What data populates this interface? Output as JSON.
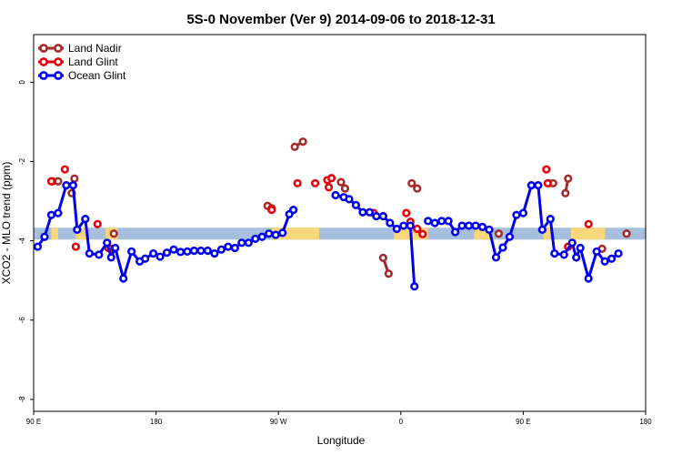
{
  "chart_data": {
    "type": "line",
    "title": "5S-0 November (Ver 9)   2014-09-06 to 2018-12-31",
    "xlabel": "Longitude",
    "ylabel": "XCO2 - MLO trend (ppm)",
    "xlim": [
      90,
      540
    ],
    "ylim": [
      -8.3,
      1.2
    ],
    "x_ticks": [
      {
        "value": 90,
        "label": "90 E"
      },
      {
        "value": 180,
        "label": "180"
      },
      {
        "value": 270,
        "label": "90 W"
      },
      {
        "value": 360,
        "label": "0"
      },
      {
        "value": 450,
        "label": "90 E"
      },
      {
        "value": 540,
        "label": "180"
      }
    ],
    "y_ticks": [
      {
        "value": 0,
        "label": "0"
      },
      {
        "value": -2,
        "label": "-2"
      },
      {
        "value": -4,
        "label": "-4"
      },
      {
        "value": -6,
        "label": "-6"
      },
      {
        "value": -8,
        "label": "-8"
      }
    ],
    "legend_position": "top-left",
    "grid": false,
    "land_band": {
      "y_top": -3.67,
      "y_bottom": -3.97,
      "ocean_color": "#a5bfdd",
      "land_color": "#f8d77a"
    },
    "series": [
      {
        "name": "Land Nadir",
        "color": "#a52a2a",
        "segments": [
          [
            [
              104,
              -2.5
            ],
            [
              108,
              -2.5
            ]
          ],
          [
            [
              118,
              -2.8
            ],
            [
              120,
              -2.43
            ]
          ],
          [
            [
              149,
              -3.82
            ]
          ],
          [
            [
              148,
              -4.2
            ]
          ],
          [
            [
              262,
              -3.12
            ],
            [
              265,
              -3.18
            ]
          ],
          [
            [
              282,
              -1.63
            ],
            [
              288,
              -1.5
            ]
          ],
          [
            [
              316,
              -2.52
            ],
            [
              319,
              -2.68
            ]
          ],
          [
            [
              347,
              -4.43
            ],
            [
              351,
              -4.83
            ]
          ],
          [
            [
              368,
              -2.55
            ],
            [
              372,
              -2.68
            ]
          ],
          [
            [
              432,
              -3.82
            ]
          ],
          [
            [
              469,
              -2.55
            ],
            [
              472,
              -2.55
            ]
          ],
          [
            [
              481,
              -2.8
            ],
            [
              483,
              -2.43
            ]
          ],
          [
            [
              508,
              -4.2
            ]
          ],
          [
            [
              526,
              -3.82
            ]
          ]
        ]
      },
      {
        "name": "Land Glint",
        "color": "#e8000b",
        "points": [
          [
            103,
            -2.5
          ],
          [
            113,
            -2.2
          ],
          [
            121,
            -4.15
          ],
          [
            137,
            -3.58
          ],
          [
            145,
            -4.18
          ],
          [
            265,
            -3.22
          ],
          [
            284,
            -2.55
          ],
          [
            297,
            -2.55
          ],
          [
            306,
            -2.47
          ],
          [
            307,
            -2.65
          ],
          [
            309,
            -2.42
          ],
          [
            340,
            -3.3
          ],
          [
            364,
            -3.3
          ],
          [
            367,
            -3.52
          ],
          [
            372,
            -3.7
          ],
          [
            376,
            -3.83
          ],
          [
            468,
            -2.55
          ],
          [
            467,
            -2.2
          ],
          [
            483,
            -4.15
          ],
          [
            498,
            -3.58
          ]
        ]
      },
      {
        "name": "Ocean Glint",
        "color": "#0000ee",
        "segments": [
          [
            [
              93,
              -4.15
            ],
            [
              98,
              -3.9
            ],
            [
              103,
              -3.35
            ],
            [
              108,
              -3.3
            ],
            [
              114,
              -2.6
            ],
            [
              119,
              -2.6
            ],
            [
              122,
              -3.72
            ],
            [
              128,
              -3.45
            ],
            [
              131,
              -4.32
            ],
            [
              138,
              -4.35
            ],
            [
              144,
              -4.05
            ],
            [
              147,
              -4.42
            ],
            [
              150,
              -4.18
            ],
            [
              156,
              -4.95
            ],
            [
              162,
              -4.27
            ],
            [
              168,
              -4.52
            ],
            [
              172,
              -4.45
            ],
            [
              178,
              -4.32
            ],
            [
              183,
              -4.4
            ],
            [
              188,
              -4.3
            ],
            [
              193,
              -4.22
            ],
            [
              198,
              -4.28
            ],
            [
              203,
              -4.27
            ],
            [
              208,
              -4.25
            ],
            [
              213,
              -4.25
            ],
            [
              218,
              -4.25
            ],
            [
              223,
              -4.32
            ],
            [
              228,
              -4.22
            ],
            [
              233,
              -4.15
            ],
            [
              238,
              -4.18
            ],
            [
              243,
              -4.05
            ],
            [
              248,
              -4.05
            ],
            [
              253,
              -3.95
            ],
            [
              258,
              -3.9
            ],
            [
              263,
              -3.82
            ],
            [
              268,
              -3.85
            ],
            [
              273,
              -3.8
            ],
            [
              278,
              -3.33
            ],
            [
              281,
              -3.22
            ]
          ],
          [
            [
              312,
              -2.85
            ],
            [
              318,
              -2.9
            ],
            [
              322,
              -2.95
            ],
            [
              327,
              -3.1
            ],
            [
              332,
              -3.28
            ],
            [
              337,
              -3.28
            ],
            [
              342,
              -3.38
            ],
            [
              347,
              -3.38
            ],
            [
              352,
              -3.55
            ],
            [
              357,
              -3.7
            ],
            [
              362,
              -3.62
            ],
            [
              367,
              -3.62
            ],
            [
              370,
              -5.15
            ]
          ],
          [
            [
              380,
              -3.5
            ],
            [
              385,
              -3.55
            ],
            [
              390,
              -3.5
            ],
            [
              395,
              -3.5
            ],
            [
              400,
              -3.78
            ],
            [
              405,
              -3.62
            ],
            [
              410,
              -3.62
            ],
            [
              415,
              -3.62
            ],
            [
              420,
              -3.65
            ],
            [
              425,
              -3.72
            ],
            [
              430,
              -4.42
            ],
            [
              435,
              -4.17
            ],
            [
              440,
              -3.9
            ],
            [
              445,
              -3.35
            ],
            [
              450,
              -3.3
            ],
            [
              456,
              -2.6
            ],
            [
              461,
              -2.6
            ],
            [
              464,
              -3.72
            ],
            [
              470,
              -3.45
            ],
            [
              473,
              -4.32
            ],
            [
              480,
              -4.35
            ],
            [
              486,
              -4.05
            ],
            [
              489,
              -4.42
            ],
            [
              492,
              -4.18
            ],
            [
              498,
              -4.95
            ],
            [
              504,
              -4.27
            ],
            [
              510,
              -4.52
            ],
            [
              515,
              -4.45
            ],
            [
              520,
              -4.32
            ]
          ]
        ]
      }
    ]
  }
}
